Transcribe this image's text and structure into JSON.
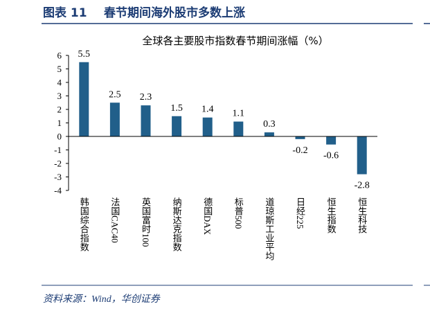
{
  "header": {
    "label": "图表 11",
    "title": "春节期间海外股市多数上涨"
  },
  "source": "资料来源：Wind，华创证券",
  "chart_data": {
    "type": "bar",
    "title": "全球各主要股市指数春节期间涨幅（%）",
    "categories": [
      "韩国综合指数",
      "法国CAC40",
      "英国富时100",
      "纳斯达克指数",
      "德国DAX",
      "标普500",
      "道琼斯工业平均",
      "日经225",
      "恒生指数",
      "恒生科技"
    ],
    "values": [
      5.5,
      2.5,
      2.3,
      1.5,
      1.4,
      1.1,
      0.3,
      -0.2,
      -0.6,
      -2.8
    ],
    "color": "#215f8a",
    "ylim": [
      -4,
      6
    ],
    "yticks": [
      -4,
      -3,
      -2,
      -1,
      0,
      1,
      2,
      3,
      4,
      5,
      6
    ],
    "grid": false
  }
}
